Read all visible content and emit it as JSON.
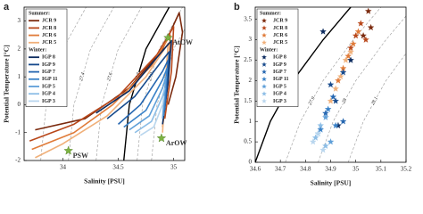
{
  "chart_data": [
    {
      "type": "line",
      "panel": "a",
      "xlabel": "Salinity [PSU]",
      "ylabel": "Potential Temperature [°C]",
      "xlim": [
        33.65,
        35.1
      ],
      "ylim": [
        -2,
        3.5
      ],
      "xticks": [
        34,
        34.5,
        35
      ],
      "yticks": [
        -2,
        -1,
        0,
        1,
        2,
        3
      ],
      "legend": "upper left",
      "contours": [
        {
          "label": "27.2",
          "dash": true,
          "color": "#999999",
          "x": [
            33.8,
            33.85,
            34.0,
            34.21
          ],
          "y": [
            -2,
            0,
            2,
            3.5
          ]
        },
        {
          "label": "27.4",
          "dash": true,
          "color": "#999999",
          "x": [
            34.05,
            34.1,
            34.25,
            34.46
          ],
          "y": [
            -2,
            0,
            2,
            3.5
          ]
        },
        {
          "label": "27.6",
          "dash": true,
          "color": "#999999",
          "x": [
            34.3,
            34.35,
            34.5,
            34.71
          ],
          "y": [
            -2,
            0,
            2,
            3.5
          ]
        },
        {
          "label": "27.8",
          "dash": false,
          "color": "#000000",
          "x": [
            34.55,
            34.6,
            34.75,
            34.96
          ],
          "y": [
            -2,
            0,
            2,
            3.5
          ]
        },
        {
          "label": "27.9",
          "dash": true,
          "color": "#999999",
          "x": [
            34.67,
            34.72,
            34.87,
            35.08
          ],
          "y": [
            -2,
            0,
            2,
            3.5
          ]
        },
        {
          "label": "28",
          "dash": true,
          "color": "#999999",
          "x": [
            34.8,
            34.85,
            35.0,
            35.21
          ],
          "y": [
            -2,
            0,
            2,
            3.5
          ]
        }
      ],
      "series_groups": [
        {
          "name": "Summer:",
          "series": [
            {
              "name": "JCR 9",
              "color": "#7b2a0e",
              "x": [
                33.75,
                34.2,
                34.6,
                34.9,
                35.05,
                35.08,
                35.02,
                34.95
              ],
              "values": [
                -0.9,
                -0.5,
                0.6,
                2.0,
                3.3,
                2.6,
                1.0,
                0.0
              ]
            },
            {
              "name": "JCR 8",
              "color": "#b8471a",
              "x": [
                33.7,
                34.1,
                34.5,
                34.85,
                35.0,
                34.98,
                34.92
              ],
              "values": [
                -1.3,
                -0.7,
                0.3,
                1.8,
                2.8,
                1.2,
                -0.5
              ]
            },
            {
              "name": "JCR 6",
              "color": "#e07b39",
              "x": [
                33.72,
                34.1,
                34.45,
                34.8,
                34.97,
                34.95,
                34.9
              ],
              "values": [
                -1.6,
                -1.0,
                0.0,
                1.4,
                2.5,
                0.8,
                -0.8
              ]
            },
            {
              "name": "JCR 5",
              "color": "#f0b07a",
              "x": [
                33.75,
                34.0,
                34.4,
                34.75,
                34.95,
                34.92,
                34.9
              ],
              "values": [
                -1.9,
                -1.4,
                -0.4,
                1.0,
                2.2,
                0.5,
                -1.0
              ]
            }
          ]
        },
        {
          "name": "Winter:",
          "series": [
            {
              "name": "IGP 8",
              "color": "#0b2a5e",
              "x": [
                34.3,
                34.6,
                34.85,
                34.98,
                34.95,
                34.9
              ],
              "values": [
                -0.3,
                0.5,
                1.7,
                2.3,
                0.8,
                -0.7
              ]
            },
            {
              "name": "IGP 9",
              "color": "#174a8c",
              "x": [
                34.4,
                34.65,
                34.88,
                34.96,
                34.93
              ],
              "values": [
                -0.5,
                0.3,
                1.5,
                1.9,
                0.2
              ]
            },
            {
              "name": "IGP 7",
              "color": "#2566b0",
              "x": [
                34.5,
                34.7,
                34.9,
                34.95,
                34.92
              ],
              "values": [
                -0.7,
                0.0,
                1.2,
                1.6,
                -0.2
              ]
            },
            {
              "name": "IGP 11",
              "color": "#3a82c8",
              "x": [
                34.55,
                34.75,
                34.9,
                34.94,
                34.91
              ],
              "values": [
                -0.8,
                -0.2,
                0.9,
                1.3,
                -0.4
              ]
            },
            {
              "name": "IGP 5",
              "color": "#5f9fd8",
              "x": [
                34.6,
                34.78,
                34.9,
                34.93,
                34.9
              ],
              "values": [
                -0.9,
                -0.4,
                0.6,
                1.0,
                -0.5
              ]
            },
            {
              "name": "IGP 4",
              "color": "#8cbde6",
              "x": [
                34.65,
                34.8,
                34.9,
                34.92
              ],
              "values": [
                -1.0,
                -0.6,
                0.3,
                0.6
              ]
            },
            {
              "name": "IGP 3",
              "color": "#b9d6ee",
              "x": [
                34.7,
                34.82,
                34.9,
                34.91
              ],
              "values": [
                -1.1,
                -0.8,
                0.0,
                0.3
              ]
            }
          ]
        }
      ],
      "markers": [
        {
          "label": "AtOW",
          "color": "#7cb342",
          "x": 34.95,
          "y": 2.4
        },
        {
          "label": "ArOW",
          "color": "#7cb342",
          "x": 34.89,
          "y": -1.2
        },
        {
          "label": "PSW",
          "color": "#7cb342",
          "x": 34.05,
          "y": -1.65
        }
      ]
    },
    {
      "type": "scatter",
      "panel": "b",
      "xlabel": "Salinity [PSU]",
      "ylabel": "Potential Temperature [°C]",
      "xlim": [
        34.6,
        35.2
      ],
      "ylim": [
        0,
        3.8
      ],
      "xticks": [
        34.6,
        34.7,
        34.8,
        34.9,
        35,
        35.1,
        35.2
      ],
      "yticks": [
        0,
        0.5,
        1,
        1.5,
        2,
        2.5,
        3,
        3.5
      ],
      "legend": "upper left",
      "contours": [
        {
          "label": "27.8",
          "dash": false,
          "color": "#000000",
          "x": [
            34.6,
            34.66,
            34.75,
            34.87,
            34.98
          ],
          "y": [
            0,
            1,
            2,
            3,
            3.8
          ]
        },
        {
          "label": "27.9",
          "dash": true,
          "color": "#999999",
          "x": [
            34.72,
            34.78,
            34.87,
            34.99,
            35.1
          ],
          "y": [
            0,
            1,
            2,
            3,
            3.8
          ]
        },
        {
          "label": "28",
          "dash": true,
          "color": "#999999",
          "x": [
            34.85,
            34.91,
            35.0,
            35.12,
            35.23
          ],
          "y": [
            0,
            1,
            2,
            3,
            3.8
          ]
        },
        {
          "label": "28.1",
          "dash": true,
          "color": "#999999",
          "x": [
            34.97,
            35.03,
            35.12,
            35.24,
            35.35
          ],
          "y": [
            0,
            1,
            2,
            3,
            3.8
          ]
        }
      ],
      "series_groups": [
        {
          "name": "Summer:",
          "series": [
            {
              "name": "JCR 9",
              "color": "#7b2a0e",
              "x": [
                35.05,
                35.06,
                35.03
              ],
              "values": [
                3.7,
                3.3,
                3.1
              ]
            },
            {
              "name": "JCR 8",
              "color": "#b8471a",
              "x": [
                35.02,
                35.0,
                35.04,
                34.98
              ],
              "values": [
                3.4,
                3.1,
                3.0,
                2.8
              ]
            },
            {
              "name": "JCR 6",
              "color": "#e07b39",
              "x": [
                34.97,
                34.99,
                35.01,
                34.95,
                34.93
              ],
              "values": [
                2.6,
                2.9,
                3.2,
                2.3,
                2.0
              ]
            },
            {
              "name": "JCR 5",
              "color": "#f0b07a",
              "x": [
                34.94,
                34.96,
                34.92,
                34.9,
                34.98
              ],
              "values": [
                2.1,
                2.5,
                1.8,
                1.5,
                2.7
              ]
            }
          ]
        },
        {
          "name": "Winter:",
          "series": [
            {
              "name": "IGP 8",
              "color": "#0b2a5e",
              "x": [
                34.87,
                34.98,
                34.93
              ],
              "values": [
                3.2,
                2.5,
                0.9
              ]
            },
            {
              "name": "IGP 9",
              "color": "#174a8c",
              "x": [
                34.9,
                34.92,
                34.95
              ],
              "values": [
                1.9,
                1.5,
                2.2
              ]
            },
            {
              "name": "IGP 7",
              "color": "#2566b0",
              "x": [
                34.91,
                34.88,
                34.95
              ],
              "values": [
                1.6,
                1.2,
                1.0
              ]
            },
            {
              "name": "IGP 11",
              "color": "#3a82c8",
              "x": [
                34.89,
                34.92,
                34.86
              ],
              "values": [
                1.3,
                0.9,
                0.8
              ]
            },
            {
              "name": "IGP 5",
              "color": "#5f9fd8",
              "x": [
                34.88,
                34.85,
                34.9
              ],
              "values": [
                1.1,
                0.7,
                0.5
              ]
            },
            {
              "name": "IGP 4",
              "color": "#8cbde6",
              "x": [
                34.86,
                34.84,
                34.88
              ],
              "values": [
                0.9,
                0.6,
                0.4
              ]
            },
            {
              "name": "IGP 3",
              "color": "#b9d6ee",
              "x": [
                34.85,
                34.83,
                34.87
              ],
              "values": [
                0.7,
                0.5,
                0.3
              ]
            }
          ]
        }
      ]
    }
  ]
}
